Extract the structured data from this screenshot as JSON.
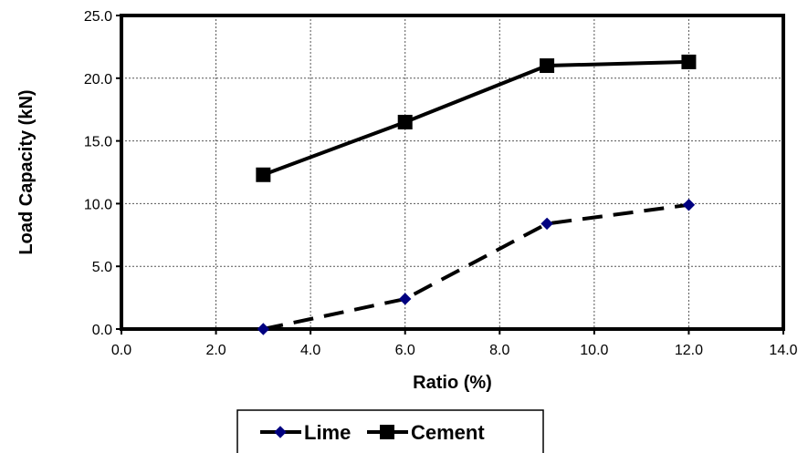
{
  "chart_data": {
    "type": "line",
    "title": "",
    "xlabel": "Ratio (%)",
    "ylabel": "Load Capacity (kN)",
    "xlim": [
      0,
      14
    ],
    "ylim": [
      0,
      25
    ],
    "xticks": [
      0,
      2,
      4,
      6,
      8,
      10,
      12,
      14
    ],
    "yticks": [
      0,
      5,
      10,
      15,
      20,
      25
    ],
    "xtick_labels": [
      "0.0",
      "2.0",
      "4.0",
      "6.0",
      "8.0",
      "10.0",
      "12.0",
      "14.0"
    ],
    "ytick_labels": [
      "0.0",
      "5.0",
      "10.0",
      "15.0",
      "20.0",
      "25.0"
    ],
    "grid": true,
    "legend_position": "bottom",
    "series": [
      {
        "name": "Lime",
        "x": [
          3,
          6,
          9,
          12
        ],
        "values": [
          0.0,
          2.4,
          8.4,
          9.9
        ],
        "color": "#000080",
        "line_style": "dashed",
        "marker": "diamond"
      },
      {
        "name": "Cement",
        "x": [
          3,
          6,
          9,
          12
        ],
        "values": [
          12.3,
          16.5,
          21.0,
          21.3
        ],
        "color": "#000000",
        "line_style": "solid",
        "marker": "square"
      }
    ]
  }
}
